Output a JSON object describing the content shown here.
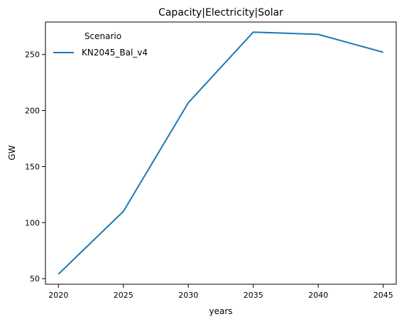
{
  "chart_data": {
    "type": "line",
    "title": "Capacity|Electricity|Solar",
    "xlabel": "years",
    "ylabel": "GW",
    "x": [
      2020,
      2025,
      2030,
      2035,
      2040,
      2045
    ],
    "series": [
      {
        "name": "KN2045_Bal_v4",
        "color": "#1f77b4",
        "values": [
          54,
          110,
          207,
          270,
          268,
          252
        ]
      }
    ],
    "xticks": [
      2020,
      2025,
      2030,
      2035,
      2040,
      2045
    ],
    "yticks": [
      50,
      100,
      150,
      200,
      250
    ],
    "xlim": [
      2019,
      2046
    ],
    "ylim": [
      45,
      279
    ],
    "grid": false,
    "legend": {
      "title": "Scenario",
      "placement": "upper-left"
    }
  }
}
